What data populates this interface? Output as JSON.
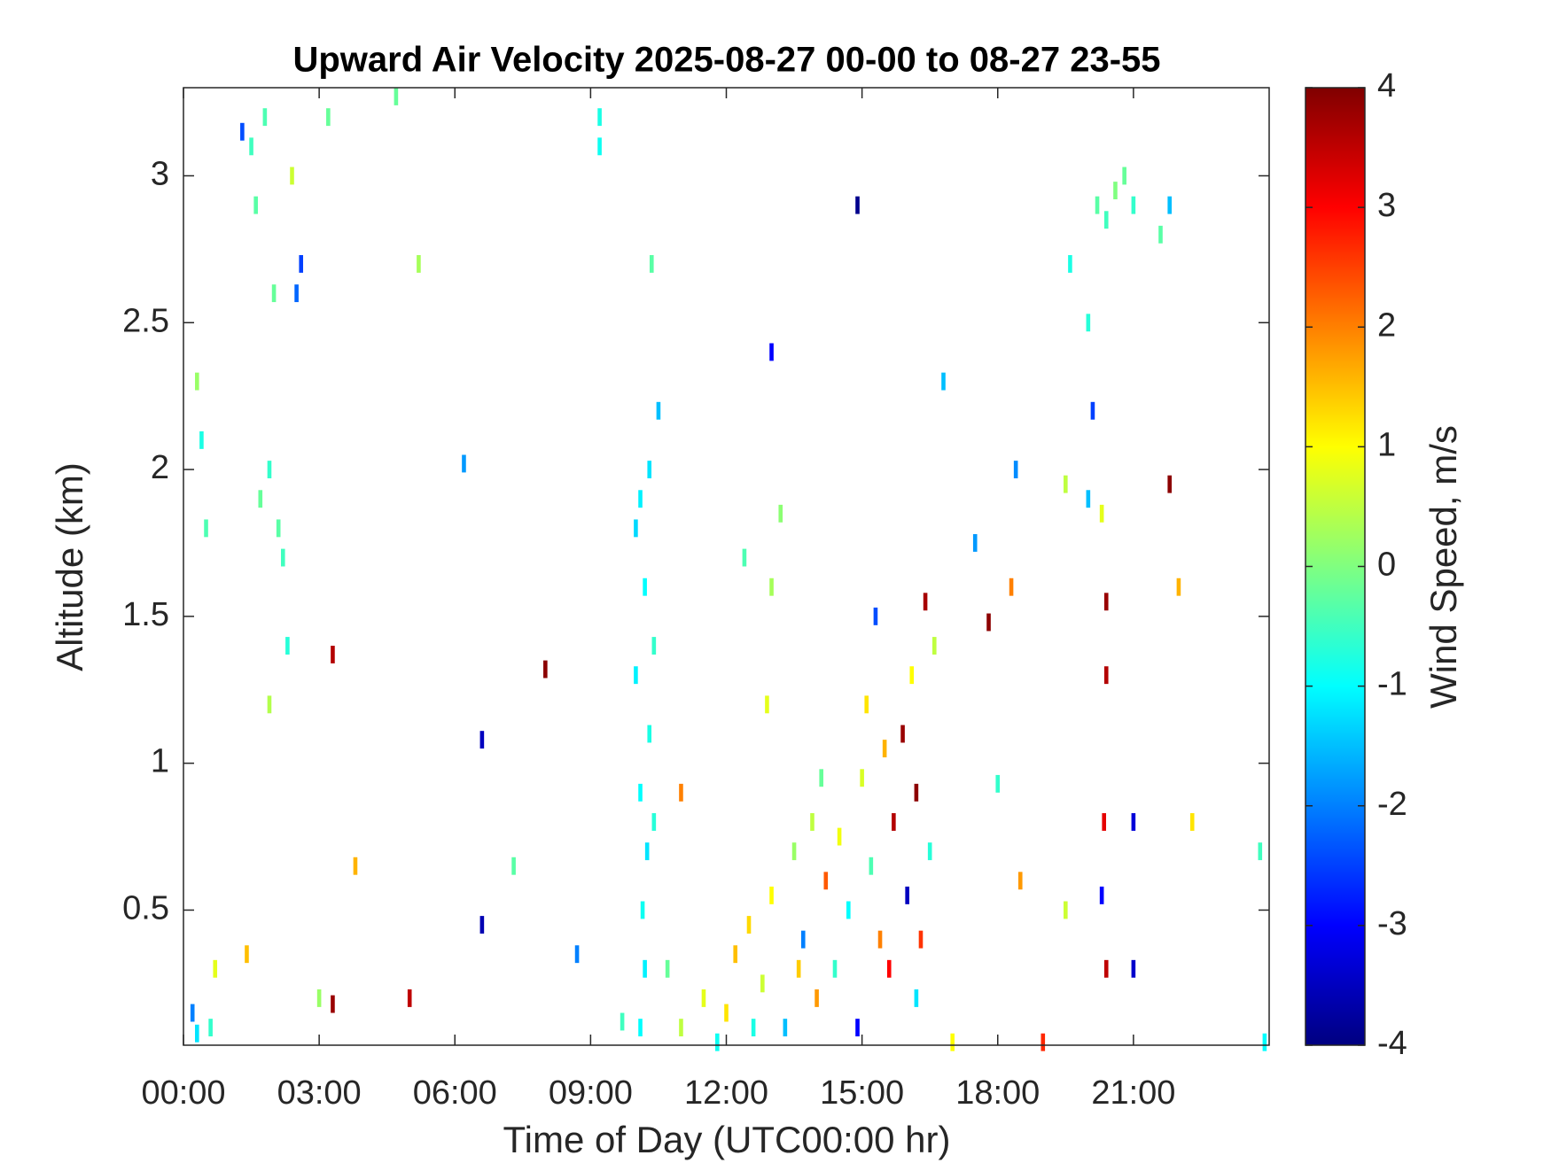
{
  "chart_data": {
    "type": "heatmap",
    "title": "Upward Air Velocity 2025-08-27 00-00 to 08-27 23-55",
    "x_label": "Time of Day (UTC00:00 hr)",
    "y_label": "Altitude (km)",
    "colorbar_label": "Wind Speed, m/s",
    "colormap": "jet",
    "xlim": [
      0,
      24
    ],
    "xticks": [
      {
        "value": 0,
        "label": "00:00"
      },
      {
        "value": 3,
        "label": "03:00"
      },
      {
        "value": 6,
        "label": "06:00"
      },
      {
        "value": 9,
        "label": "09:00"
      },
      {
        "value": 12,
        "label": "12:00"
      },
      {
        "value": 15,
        "label": "15:00"
      },
      {
        "value": 18,
        "label": "18:00"
      },
      {
        "value": 21,
        "label": "21:00"
      }
    ],
    "ylim": [
      0.04,
      3.3
    ],
    "yticks": [
      0.5,
      1,
      1.5,
      2,
      2.5,
      3
    ],
    "clim": [
      -4,
      4
    ],
    "cticks": [
      -4,
      -3,
      -2,
      -1,
      0,
      1,
      2,
      3,
      4
    ],
    "x": [
      10.1,
      10.2,
      10.15,
      10.25,
      10.1,
      10.3,
      10.0,
      10.4,
      10.2,
      10.0,
      10.3,
      10.5,
      10.4,
      10.1,
      10.35,
      9.2,
      9.2,
      1.5,
      1.6,
      1.8,
      2.0,
      1.9,
      2.1,
      2.2,
      1.7,
      2.5,
      2.6,
      1.3,
      0.4,
      0.3,
      0.5,
      2.4,
      3.2,
      5.2,
      1.9,
      2.3,
      0.2,
      0.3,
      0.6,
      1.4,
      0.7,
      3.0,
      3.8,
      3.3,
      3.3,
      5.0,
      6.6,
      6.6,
      8.0,
      8.7,
      7.3,
      6.2,
      4.7,
      9.7,
      11.0,
      13.0,
      13.0,
      14.9,
      16.8,
      17.5,
      18.4,
      18.3,
      17.8,
      18.0,
      11.0,
      11.5,
      12.0,
      12.2,
      12.5,
      12.8,
      13.0,
      13.3,
      13.5,
      13.7,
      13.9,
      14.0,
      14.2,
      14.4,
      14.5,
      14.7,
      14.9,
      15.0,
      15.1,
      15.2,
      15.3,
      15.5,
      15.6,
      15.7,
      15.9,
      16.0,
      16.1,
      16.2,
      16.3,
      16.4,
      16.5,
      16.6,
      16.2,
      15.4,
      14.1,
      12.9,
      13.2,
      12.4,
      13.6,
      12.6,
      11.8,
      20.2,
      20.4,
      20.6,
      20.8,
      21.0,
      21.6,
      21.8,
      19.6,
      20.0,
      20.1,
      20.0,
      19.5,
      20.3,
      20.4,
      20.4,
      20.35,
      20.3,
      20.4,
      21.0,
      21.0,
      21.8,
      22.0,
      19.0,
      19.5,
      22.3,
      23.9,
      23.8,
      18.5,
      17.0,
      10.7
    ],
    "y": [
      0.1,
      0.3,
      0.5,
      0.7,
      0.9,
      1.1,
      1.3,
      1.4,
      1.6,
      1.8,
      2.0,
      2.2,
      0.8,
      1.9,
      2.7,
      3.2,
      3.1,
      3.1,
      2.9,
      3.2,
      2.6,
      2.0,
      1.8,
      1.7,
      1.9,
      2.6,
      2.7,
      3.15,
      2.1,
      2.3,
      1.8,
      3.0,
      3.2,
      2.7,
      1.2,
      1.4,
      0.15,
      0.08,
      0.1,
      0.35,
      0.3,
      0.2,
      0.65,
      1.37,
      0.18,
      0.2,
      0.45,
      1.08,
      1.32,
      0.35,
      0.65,
      2.02,
      3.27,
      0.12,
      0.9,
      1.6,
      2.4,
      2.9,
      2.3,
      1.75,
      2.0,
      1.6,
      1.48,
      0.93,
      0.1,
      0.2,
      0.15,
      0.35,
      0.45,
      0.25,
      0.55,
      0.1,
      0.7,
      0.4,
      0.8,
      0.2,
      0.6,
      0.3,
      0.75,
      0.5,
      0.1,
      0.95,
      1.2,
      0.65,
      1.5,
      1.05,
      0.3,
      0.8,
      1.1,
      0.55,
      1.3,
      0.9,
      0.4,
      1.55,
      0.7,
      1.4,
      0.2,
      0.4,
      0.95,
      1.2,
      1.85,
      1.7,
      0.3,
      0.1,
      0.05,
      2.9,
      2.85,
      2.95,
      3.0,
      2.9,
      2.8,
      2.9,
      2.7,
      2.5,
      2.2,
      1.9,
      1.95,
      1.85,
      1.55,
      1.3,
      0.8,
      0.55,
      0.3,
      0.3,
      0.8,
      1.95,
      1.6,
      0.05,
      0.5,
      0.8,
      0.05,
      0.7,
      0.6,
      0.05,
      0.3
    ],
    "values": [
      -1.0,
      -1.1,
      -0.9,
      -1.2,
      -1.0,
      -0.8,
      -1.1,
      -0.6,
      -1.0,
      -1.3,
      -1.2,
      -1.5,
      -0.7,
      -1.1,
      -0.3,
      -0.8,
      -0.9,
      -0.5,
      -0.3,
      -0.4,
      -0.2,
      -0.6,
      -0.3,
      -0.5,
      -0.2,
      -2.2,
      -2.5,
      -2.4,
      -0.8,
      0.2,
      -0.4,
      0.6,
      -0.2,
      0.3,
      0.4,
      -0.7,
      -2.0,
      -1.2,
      -0.6,
      1.5,
      0.8,
      0.2,
      1.6,
      3.6,
      3.8,
      3.5,
      -3.6,
      -3.5,
      3.9,
      -2.0,
      -0.3,
      -1.8,
      -0.2,
      -0.5,
      2.0,
      0.3,
      -3.0,
      -3.9,
      -1.5,
      -1.8,
      -1.9,
      2.0,
      3.9,
      -0.6,
      0.5,
      0.8,
      1.2,
      1.5,
      1.3,
      0.6,
      1.0,
      -1.5,
      0.2,
      -2.0,
      0.5,
      1.8,
      2.3,
      -0.6,
      0.9,
      -1.0,
      -3.0,
      0.7,
      1.2,
      -0.4,
      -2.4,
      1.6,
      3.0,
      3.6,
      3.8,
      -3.5,
      1.0,
      3.9,
      2.6,
      3.7,
      -0.7,
      0.5,
      -1.2,
      2.0,
      -0.2,
      0.8,
      0.1,
      -0.4,
      1.4,
      -0.8,
      -0.9,
      -0.3,
      -0.5,
      0.0,
      -0.2,
      -0.6,
      -0.3,
      -1.5,
      -0.8,
      -0.7,
      -2.5,
      -1.5,
      0.5,
      0.8,
      3.8,
      3.6,
      3.2,
      -3.0,
      3.5,
      -3.4,
      -3.3,
      3.9,
      1.6,
      2.7,
      0.6,
      1.2,
      -1.0,
      -0.5,
      1.8,
      1.0,
      -0.2
    ]
  }
}
